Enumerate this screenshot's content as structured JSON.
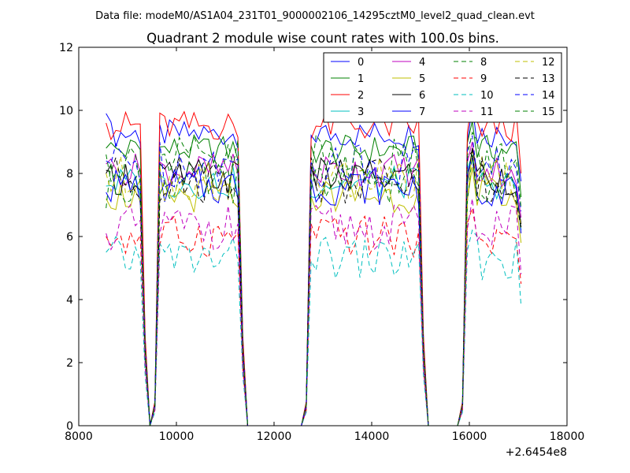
{
  "suptitle": "Data file: modeM0/AS1A04_231T01_9000002106_14295cztM0_level2_quad_clean.evt",
  "chart_data": {
    "type": "line",
    "title": "Quadrant 2 module wise count rates with 100.0s bins.",
    "xlabel": "",
    "ylabel": "",
    "x_offset_label": "+2.6454e8",
    "xlim": [
      8000,
      18000
    ],
    "ylim": [
      0,
      12
    ],
    "xticks": [
      8000,
      10000,
      12000,
      14000,
      16000,
      18000
    ],
    "yticks": [
      0,
      2,
      4,
      6,
      8,
      10,
      12
    ],
    "grid": false,
    "legend": {
      "location": "upper right",
      "columns": 4
    },
    "x": [
      8560,
      8660,
      8760,
      8860,
      8960,
      9060,
      9160,
      9260,
      9360,
      9460,
      9560,
      9660,
      9760,
      9860,
      9960,
      10060,
      10160,
      10260,
      10360,
      10460,
      10560,
      10660,
      10760,
      10860,
      10960,
      11060,
      11160,
      11260,
      11360,
      11460,
      11560,
      11660,
      11760,
      11860,
      11960,
      12060,
      12160,
      12260,
      12360,
      12460,
      12560,
      12660,
      12760,
      12860,
      12960,
      13060,
      13160,
      13260,
      13360,
      13460,
      13560,
      13660,
      13760,
      13860,
      13960,
      14060,
      14160,
      14260,
      14360,
      14460,
      14560,
      14660,
      14760,
      14860,
      14960,
      15060,
      15160,
      15260,
      15360,
      15460,
      15560,
      15660,
      15760,
      15860,
      15960,
      16060,
      16160,
      16260,
      16360,
      16460,
      16560,
      16660,
      16760,
      16860,
      16960,
      17060
    ],
    "segments": [
      {
        "start": 0,
        "end": 7,
        "zero_after": true
      },
      {
        "start": 11,
        "end": 27,
        "zero_before": true,
        "zero_after": true
      },
      {
        "start": 42,
        "end": 64,
        "zero_before": true,
        "zero_after": true
      },
      {
        "start": 74,
        "end": 85,
        "zero_before": true
      }
    ],
    "series": [
      {
        "name": "0",
        "color": "#0000ff",
        "dashed": false,
        "level": 9.25,
        "first": 9.9
      },
      {
        "name": "1",
        "color": "#008000",
        "dashed": false,
        "level": 8.75,
        "first": 8.8
      },
      {
        "name": "2",
        "color": "#ff0000",
        "dashed": false,
        "level": 9.5,
        "first": 9.6
      },
      {
        "name": "3",
        "color": "#00bfbf",
        "dashed": false,
        "level": 7.7,
        "first": 7.6
      },
      {
        "name": "4",
        "color": "#bf00bf",
        "dashed": false,
        "level": 8.1,
        "first": 8.3
      },
      {
        "name": "5",
        "color": "#bfbf00",
        "dashed": false,
        "level": 7.3,
        "first": 7.2
      },
      {
        "name": "6",
        "color": "#000000",
        "dashed": false,
        "level": 7.9,
        "first": 8.0
      },
      {
        "name": "7",
        "color": "#0000ff",
        "dashed": false,
        "level": 7.6,
        "first": 7.4
      },
      {
        "name": "8",
        "color": "#008000",
        "dashed": true,
        "level": 7.7,
        "first": 6.9
      },
      {
        "name": "9",
        "color": "#ff0000",
        "dashed": true,
        "level": 6.0,
        "first": 6.0
      },
      {
        "name": "10",
        "color": "#00bfbf",
        "dashed": true,
        "level": 5.3,
        "first": 5.5
      },
      {
        "name": "11",
        "color": "#bf00bf",
        "dashed": true,
        "level": 6.3,
        "first": 6.1
      },
      {
        "name": "12",
        "color": "#bfbf00",
        "dashed": true,
        "level": 7.8,
        "first": 8.0
      },
      {
        "name": "13",
        "color": "#000000",
        "dashed": true,
        "level": 7.8,
        "first": 8.1
      },
      {
        "name": "14",
        "color": "#0000ff",
        "dashed": true,
        "level": 8.3,
        "first": 8.4
      },
      {
        "name": "15",
        "color": "#008000",
        "dashed": true,
        "level": 8.4,
        "first": 8.6
      }
    ]
  }
}
